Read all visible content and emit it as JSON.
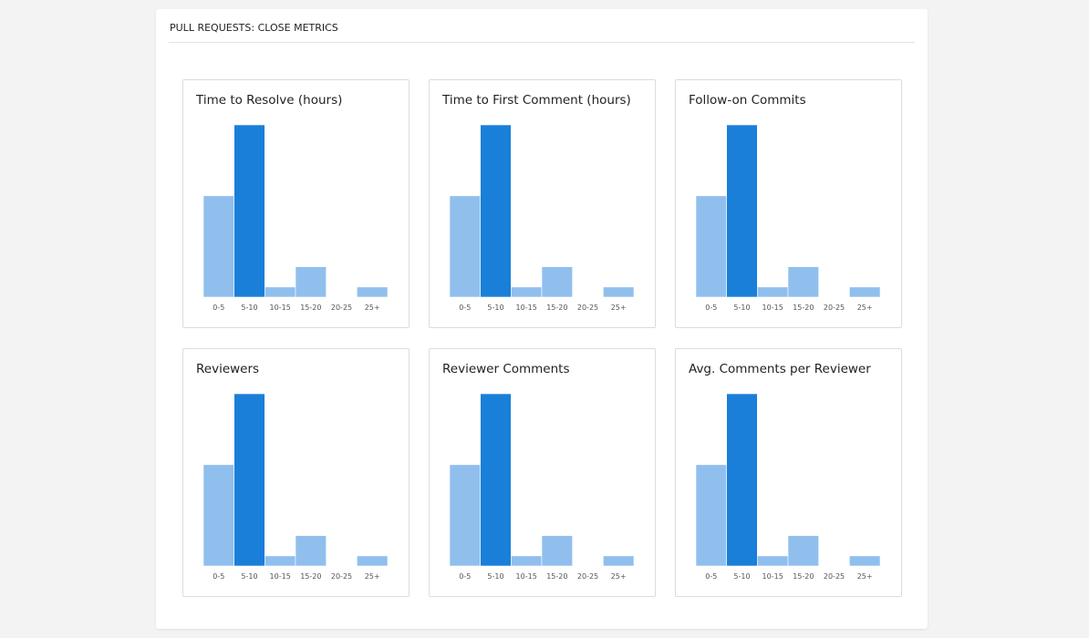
{
  "header": {
    "title": "PULL REQUESTS: CLOSE METRICS"
  },
  "chart_data": [
    {
      "type": "bar",
      "title": "Time to Resolve (hours)",
      "categories": [
        "0-5",
        "5-10",
        "10-15",
        "15-20",
        "20-25",
        "25+"
      ],
      "values": [
        10,
        17,
        1,
        3,
        0,
        1
      ],
      "colors": [
        "#90bfee",
        "#1a7fd9",
        "#90bfee",
        "#90bfee",
        "#90bfee",
        "#90bfee"
      ]
    },
    {
      "type": "bar",
      "title": "Time to First Comment (hours)",
      "categories": [
        "0-5",
        "5-10",
        "10-15",
        "15-20",
        "20-25",
        "25+"
      ],
      "values": [
        10,
        17,
        1,
        3,
        0,
        1
      ],
      "colors": [
        "#90bfee",
        "#1a7fd9",
        "#90bfee",
        "#90bfee",
        "#90bfee",
        "#90bfee"
      ]
    },
    {
      "type": "bar",
      "title": "Follow-on Commits",
      "categories": [
        "0-5",
        "5-10",
        "10-15",
        "15-20",
        "20-25",
        "25+"
      ],
      "values": [
        10,
        17,
        1,
        3,
        0,
        1
      ],
      "colors": [
        "#90bfee",
        "#1a7fd9",
        "#90bfee",
        "#90bfee",
        "#90bfee",
        "#90bfee"
      ]
    },
    {
      "type": "bar",
      "title": "Reviewers",
      "categories": [
        "0-5",
        "5-10",
        "10-15",
        "15-20",
        "20-25",
        "25+"
      ],
      "values": [
        10,
        17,
        1,
        3,
        0,
        1
      ],
      "colors": [
        "#90bfee",
        "#1a7fd9",
        "#90bfee",
        "#90bfee",
        "#90bfee",
        "#90bfee"
      ]
    },
    {
      "type": "bar",
      "title": "Reviewer Comments",
      "categories": [
        "0-5",
        "5-10",
        "10-15",
        "15-20",
        "20-25",
        "25+"
      ],
      "values": [
        10,
        17,
        1,
        3,
        0,
        1
      ],
      "colors": [
        "#90bfee",
        "#1a7fd9",
        "#90bfee",
        "#90bfee",
        "#90bfee",
        "#90bfee"
      ]
    },
    {
      "type": "bar",
      "title": "Avg. Comments per Reviewer",
      "categories": [
        "0-5",
        "5-10",
        "10-15",
        "15-20",
        "20-25",
        "25+"
      ],
      "values": [
        10,
        17,
        1,
        3,
        0,
        1
      ],
      "colors": [
        "#90bfee",
        "#1a7fd9",
        "#90bfee",
        "#90bfee",
        "#90bfee",
        "#90bfee"
      ]
    }
  ]
}
